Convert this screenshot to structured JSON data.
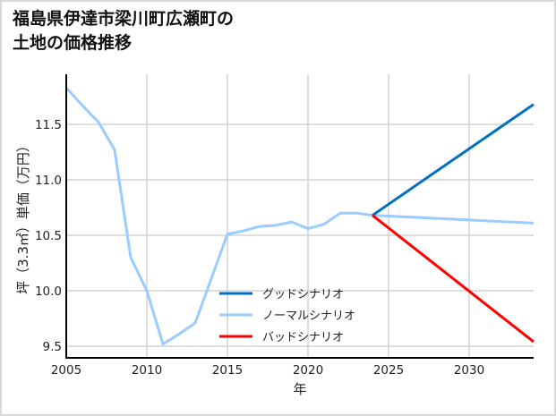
{
  "title_line1": "福島県伊達市梁川町広瀬町の",
  "title_line2": "土地の価格推移",
  "chart_data": {
    "type": "line",
    "title": "福島県伊達市梁川町広瀬町の土地の価格推移",
    "xlabel": "年",
    "ylabel": "坪（3.3㎡）単価（万円）",
    "xlim": [
      2005,
      2034
    ],
    "ylim": [
      9.4,
      11.95
    ],
    "xticks": [
      2005,
      2010,
      2015,
      2020,
      2025,
      2030
    ],
    "yticks": [
      9.5,
      10.0,
      10.5,
      11.0,
      11.5
    ],
    "ytick_labels": [
      "9.5",
      "10.0",
      "10.5",
      "11.0",
      "11.5"
    ],
    "grid": true,
    "legend_position": "lower center",
    "series": [
      {
        "name": "グッドシナリオ",
        "color": "#0070c0",
        "x": [
          2024,
          2034
        ],
        "values": [
          10.68,
          11.68
        ]
      },
      {
        "name": "ノーマルシナリオ",
        "color": "#99ccff",
        "x": [
          2005,
          2006,
          2007,
          2008,
          2009,
          2010,
          2011,
          2012,
          2013,
          2014,
          2015,
          2016,
          2017,
          2018,
          2019,
          2020,
          2021,
          2022,
          2023,
          2024,
          2034
        ],
        "values": [
          11.83,
          11.67,
          11.52,
          11.27,
          10.3,
          10.0,
          9.52,
          9.61,
          9.71,
          10.11,
          10.51,
          10.54,
          10.58,
          10.59,
          10.62,
          10.56,
          10.6,
          10.7,
          10.7,
          10.68,
          10.61
        ]
      },
      {
        "name": "バッドシナリオ",
        "color": "#ff0000",
        "x": [
          2024,
          2034
        ],
        "values": [
          10.68,
          9.54
        ]
      }
    ]
  }
}
